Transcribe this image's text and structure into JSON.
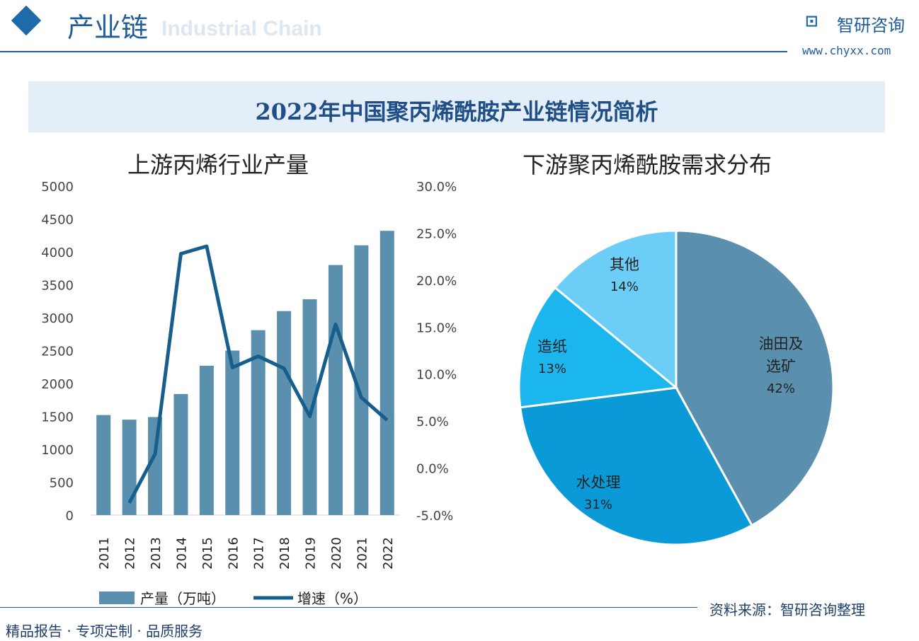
{
  "header": {
    "title": "产业链",
    "subtitle_en": "Industrial Chain",
    "brand": "智研咨询",
    "url": "www.chyxx.com"
  },
  "banner": "2022年中国聚丙烯酰胺产业链情况简析",
  "left_title": "上游丙烯行业产量",
  "right_title": "下游聚丙烯酰胺需求分布",
  "footer": {
    "left": "精品报告 · 专项定制 · 品质服务",
    "right": "资料来源：智研咨询整理"
  },
  "chart_data": [
    {
      "type": "bar+line",
      "categories": [
        "2011",
        "2012",
        "2013",
        "2014",
        "2015",
        "2016",
        "2017",
        "2018",
        "2019",
        "2020",
        "2021",
        "2022"
      ],
      "series": [
        {
          "name": "产量（万吨）",
          "type": "bar",
          "axis": "left",
          "color": "#5b8fae",
          "values": [
            1520,
            1450,
            1490,
            1840,
            2270,
            2500,
            2810,
            3100,
            3280,
            3800,
            4100,
            4320
          ]
        },
        {
          "name": "增速（%）",
          "type": "line",
          "axis": "right",
          "color": "#165f8c",
          "values": [
            null,
            -3.7,
            1.5,
            22.8,
            23.6,
            10.7,
            11.9,
            10.6,
            5.5,
            15.3,
            7.5,
            5.1
          ]
        }
      ],
      "ylim_left": [
        0,
        5000
      ],
      "yticks_left": [
        "0",
        "500",
        "1000",
        "1500",
        "2000",
        "2500",
        "3000",
        "3500",
        "4000",
        "4500",
        "5000"
      ],
      "ylim_right": [
        -5,
        30
      ],
      "yticks_right": [
        "-5.0%",
        "0.0%",
        "5.0%",
        "10.0%",
        "15.0%",
        "20.0%",
        "25.0%",
        "30.0%"
      ],
      "legend": "bottom",
      "grid": false
    },
    {
      "type": "pie",
      "slices": [
        {
          "label": "油田及选矿",
          "value": 42,
          "text": "42%",
          "color": "#5b8fae"
        },
        {
          "label": "水处理",
          "value": 31,
          "text": "31%",
          "color": "#0a9ad8"
        },
        {
          "label": "造纸",
          "value": 13,
          "text": "13%",
          "color": "#1cb6ef"
        },
        {
          "label": "其他",
          "value": 14,
          "text": "14%",
          "color": "#6ccdf6"
        }
      ]
    }
  ]
}
